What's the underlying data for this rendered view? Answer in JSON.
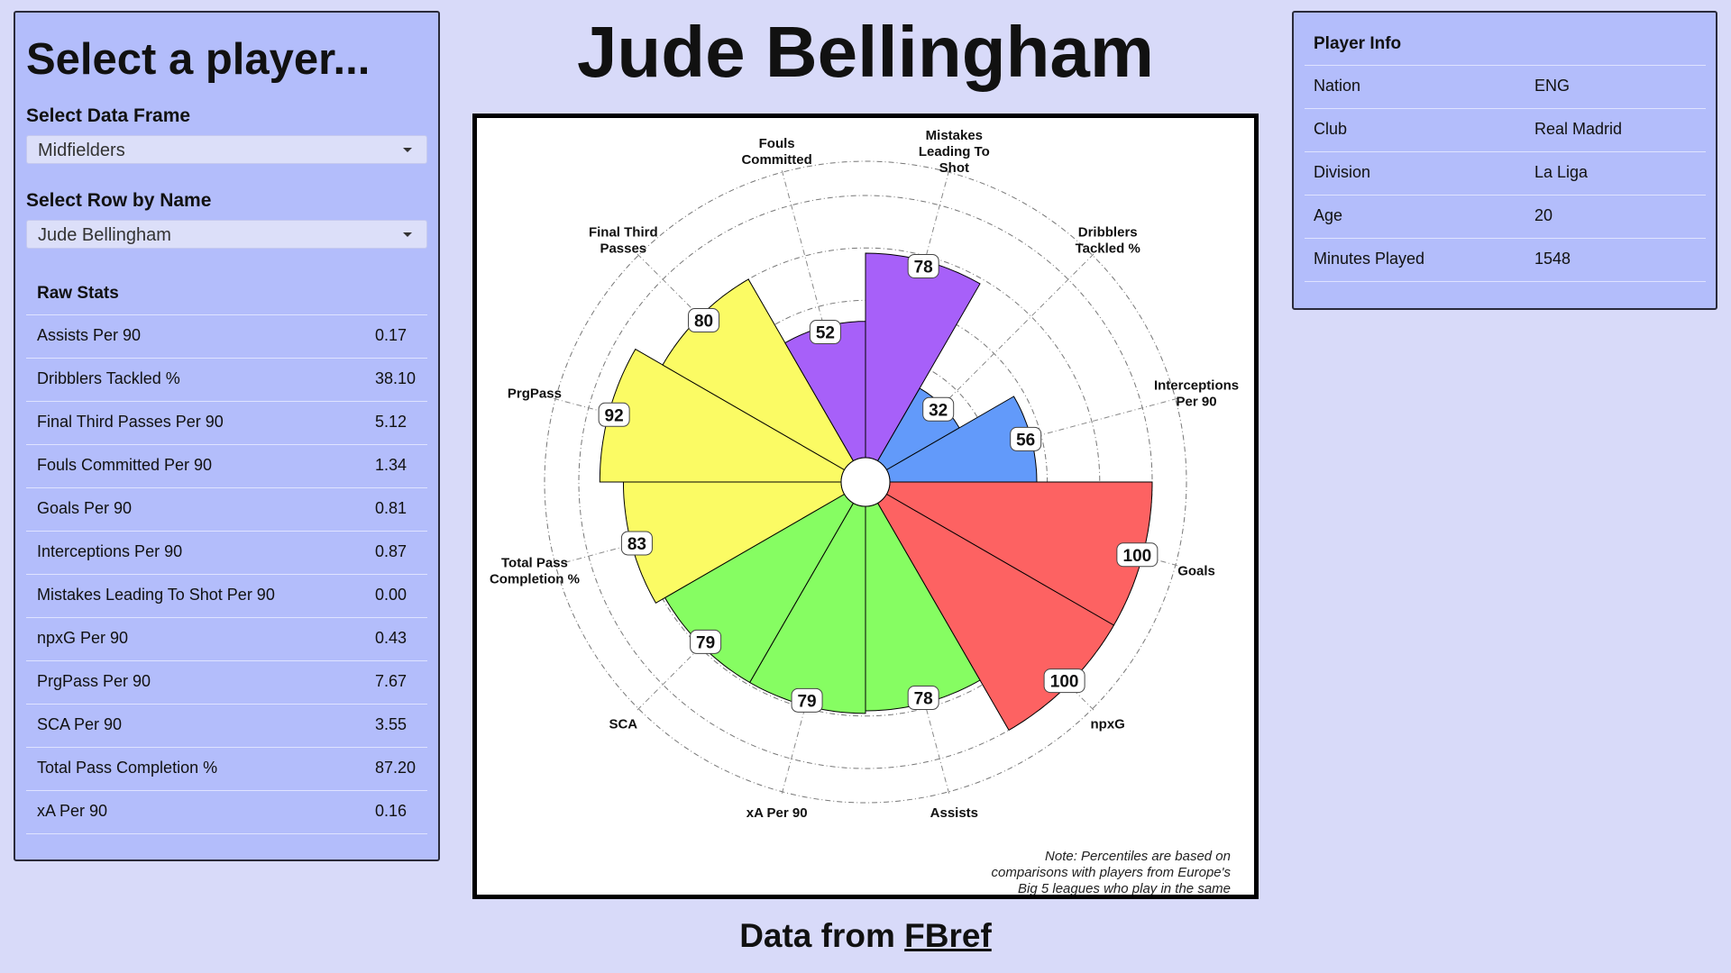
{
  "selector": {
    "title": "Select a player...",
    "frame_label": "Select Data Frame",
    "frame_value": "Midfielders",
    "row_label": "Select Row by Name",
    "row_value": "Jude Bellingham"
  },
  "raw_stats": {
    "heading": "Raw Stats",
    "rows": [
      {
        "label": "Assists Per 90",
        "value": "0.17"
      },
      {
        "label": "Dribblers Tackled %",
        "value": "38.10"
      },
      {
        "label": "Final Third Passes Per 90",
        "value": "5.12"
      },
      {
        "label": "Fouls Committed Per 90",
        "value": "1.34"
      },
      {
        "label": "Goals Per 90",
        "value": "0.81"
      },
      {
        "label": "Interceptions Per 90",
        "value": "0.87"
      },
      {
        "label": "Mistakes Leading To Shot Per 90",
        "value": "0.00"
      },
      {
        "label": "npxG Per 90",
        "value": "0.43"
      },
      {
        "label": "PrgPass Per 90",
        "value": "7.67"
      },
      {
        "label": "SCA Per 90",
        "value": "3.55"
      },
      {
        "label": "Total Pass Completion %",
        "value": "87.20"
      },
      {
        "label": "xA Per 90",
        "value": "0.16"
      }
    ]
  },
  "player_name": "Jude Bellingham",
  "player_info": {
    "heading": "Player Info",
    "rows": [
      {
        "label": "Nation",
        "value": "ENG"
      },
      {
        "label": "Club",
        "value": "Real Madrid"
      },
      {
        "label": "Division",
        "value": "La Liga"
      },
      {
        "label": "Age",
        "value": "20"
      },
      {
        "label": "Minutes Played",
        "value": "1548"
      }
    ]
  },
  "chart_data": {
    "type": "polar-bar",
    "rmax": 100,
    "grid": true,
    "segments": [
      {
        "label": "Goals",
        "value": 100,
        "color": "#fd6262"
      },
      {
        "label": "npxG",
        "value": 100,
        "color": "#fd6262"
      },
      {
        "label": "Assists",
        "value": 78,
        "color": "#86fd62"
      },
      {
        "label": "xA Per 90",
        "value": 79,
        "color": "#86fd62"
      },
      {
        "label": "SCA",
        "value": 79,
        "color": "#86fd62"
      },
      {
        "label": "Total Pass Completion %",
        "value": 83,
        "color": "#fbfb64"
      },
      {
        "label": "PrgPass",
        "value": 92,
        "color": "#fbfb64"
      },
      {
        "label": "Final Third Passes",
        "value": 80,
        "color": "#fbfb64"
      },
      {
        "label": "Fouls Committed",
        "value": 52,
        "color": "#a760f9"
      },
      {
        "label": "Mistakes Leading To Shot",
        "value": 78,
        "color": "#a760f9"
      },
      {
        "label": "Dribblers Tackled %",
        "value": 32,
        "color": "#629afa"
      },
      {
        "label": "Interceptions Per 90",
        "value": 56,
        "color": "#629afa"
      }
    ],
    "note": "Note: Percentiles are based on comparisons with players from Europe's Big 5 leagues who play in the same position."
  },
  "source": {
    "prefix": "Data from ",
    "link_text": "FBref"
  }
}
